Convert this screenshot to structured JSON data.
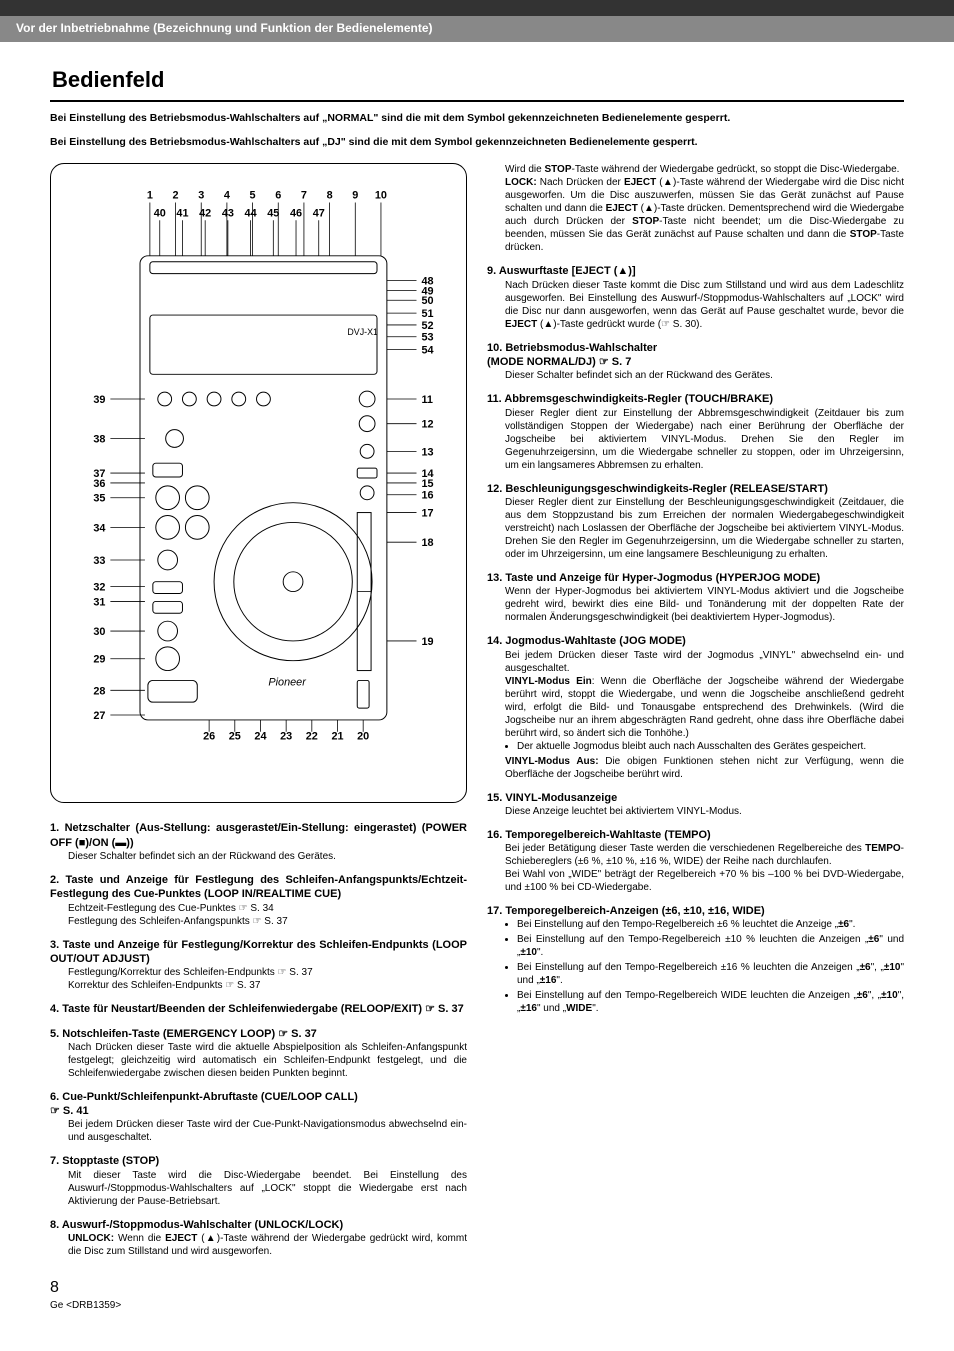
{
  "header": {
    "breadcrumb": "Vor der Inbetriebnahme (Bezeichnung und Funktion der Bedienelemente)"
  },
  "title": "Bedienfeld",
  "intro_line1": "Bei Einstellung des Betriebsmodus-Wahlschalters auf „NORMAL\" sind die mit dem Symbol      gekennzeichneten Bedienelemente gesperrt.",
  "intro_line2": "Bei Einstellung des Betriebsmodus-Wahlschalters auf „DJ\" sind die mit dem Symbol      gekennzeichneten Bedienelemente gesperrt.",
  "diagram": {
    "top_numbers": [
      "1",
      "2",
      "3",
      "4",
      "5",
      "6",
      "7",
      "8",
      "9",
      "10"
    ],
    "top_inner": [
      "40",
      "41",
      "42",
      "43",
      "44",
      "45",
      "46",
      "47"
    ],
    "right_numbers": [
      "48",
      "49",
      "50",
      "51",
      "52",
      "53",
      "54",
      "11",
      "12",
      "13",
      "14",
      "15",
      "16",
      "17",
      "18",
      "19"
    ],
    "left_numbers": [
      "39",
      "38",
      "37",
      "36",
      "35",
      "34",
      "33",
      "32",
      "31",
      "30",
      "29",
      "28",
      "27"
    ],
    "bottom_numbers": [
      "26",
      "25",
      "24",
      "23",
      "22",
      "21",
      "20"
    ],
    "brand": "Pioneer",
    "model": "DVJ-X1"
  },
  "items_left": [
    {
      "n": "1.",
      "title": "Netzschalter (Aus-Stellung: ausgerastet/Ein-Stellung: eingerastet) (POWER OFF (■)/ON (▬))",
      "body": "Dieser Schalter befindet sich an der Rückwand des Gerätes."
    },
    {
      "n": "2.",
      "title": "Taste und Anzeige für Festlegung des Schleifen-Anfangspunkts/Echtzeit-Festlegung des Cue-Punktes (LOOP IN/REALTIME CUE) ",
      "body": "Echtzeit-Festlegung des Cue-Punktes ☞ S. 34\nFestlegung des Schleifen-Anfangspunkts ☞ S. 37"
    },
    {
      "n": "3.",
      "title": "Taste und Anzeige für Festlegung/Korrektur des Schleifen-Endpunkts (LOOP OUT/OUT ADJUST) ",
      "body": "Festlegung/Korrektur des Schleifen-Endpunkts ☞ S. 37\nKorrektur des Schleifen-Endpunkts ☞ S. 37"
    },
    {
      "n": "4.",
      "title": "Taste für Neustart/Beenden der Schleifenwiedergabe (RELOOP/EXIT)        ☞ S. 37",
      "body": ""
    },
    {
      "n": "5.",
      "title": "Notschleifen-Taste (EMERGENCY LOOP)        ☞ S. 37",
      "body": "Nach Drücken dieser Taste wird die aktuelle Abspielposition als Schleifen-Anfangspunkt festgelegt; gleichzeitig wird automatisch ein Schleifen-Endpunkt festgelegt, und die Schleifenwiedergabe zwischen diesen beiden Punkten beginnt."
    },
    {
      "n": "6.",
      "title": "Cue-Punkt/Schleifenpunkt-Abruftaste (CUE/LOOP CALL)\n       ☞ S. 41",
      "body": "Bei jedem Drücken dieser Taste wird der Cue-Punkt-Navigationsmodus abwechselnd ein- und ausgeschaltet."
    },
    {
      "n": "7.",
      "title": "Stopptaste (STOP)",
      "body": "Mit dieser Taste wird die Disc-Wiedergabe beendet. Bei Einstellung des Auswurf-/Stoppmodus-Wahlschalters auf „LOCK\" stoppt die Wiedergabe erst nach Aktivierung der Pause-Betriebsart."
    },
    {
      "n": "8.",
      "title": "Auswurf-/Stoppmodus-Wahlschalter (UNLOCK/LOCK)",
      "body": "<b>UNLOCK:</b> Wenn die <b>EJECT</b> (▲)-Taste während der Wiedergabe gedrückt wird, kommt die Disc zum Stillstand und wird ausgeworfen."
    }
  ],
  "items_right_pre": "Wird die <b>STOP</b>-Taste während der Wiedergabe gedrückt, so stoppt die Disc-Wiedergabe.\n<b>LOCK:</b> Nach Drücken der <b>EJECT</b> (▲)-Taste während der Wiedergabe wird die Disc nicht ausgeworfen. Um die Disc auszuwerfen, müssen Sie das Gerät zunächst auf Pause schalten und dann die <b>EJECT</b> (▲)-Taste drücken. Dementsprechend wird die Wiedergabe auch durch Drücken der <b>STOP</b>-Taste nicht beendet; um die Disc-Wiedergabe zu beenden, müssen Sie das Gerät zunächst auf Pause schalten und dann die <b>STOP</b>-Taste drücken.",
  "items_right": [
    {
      "n": "9.",
      "title": "Auswurftaste [EJECT (▲)]",
      "body": "Nach Drücken dieser Taste kommt die Disc zum Stillstand und wird aus dem Ladeschlitz ausgeworfen. Bei Einstellung des Auswurf-/Stoppmodus-Wahlschalters auf „LOCK\" wird die Disc nur dann ausgeworfen, wenn das Gerät auf Pause geschaltet wurde, bevor die <b>EJECT</b> (▲)-Taste gedrückt wurde (☞ S. 30)."
    },
    {
      "n": "10.",
      "title": "Betriebsmodus-Wahlschalter\n(MODE NORMAL/DJ)     ☞ S. 7",
      "body": "Dieser Schalter befindet sich an der Rückwand des Gerätes."
    },
    {
      "n": "11.",
      "title": "Abbremsgeschwindigkeits-Regler (TOUCH/BRAKE) ",
      "body": "Dieser Regler dient zur Einstellung der Abbremsgeschwindigkeit (Zeitdauer bis zum vollständigen Stoppen der Wiedergabe) nach einer Berührung der Oberfläche der Jogscheibe bei aktiviertem VINYL-Modus. Drehen Sie den Regler im Gegenuhrzeigersinn, um die Wiedergabe schneller zu stoppen, oder im Uhrzeigersinn, um ein langsameres Abbremsen zu erhalten."
    },
    {
      "n": "12.",
      "title": "Beschleunigungsgeschwindigkeits-Regler (RELEASE/START) ",
      "body": "Dieser Regler dient zur Einstellung der Beschleunigungsgeschwindigkeit (Zeitdauer, die aus dem Stoppzustand bis zum Erreichen der normalen Wiedergabegeschwindigkeit verstreicht) nach Loslassen der Oberfläche der Jogscheibe bei aktiviertem VINYL-Modus. Drehen Sie den Regler im Gegenuhrzeigersinn, um die Wiedergabe schneller zu starten, oder im Uhrzeigersinn, um eine langsamere Beschleunigung zu erhalten."
    },
    {
      "n": "13.",
      "title": "Taste und Anzeige für Hyper-Jogmodus (HYPERJOG MODE) ",
      "body": "Wenn der Hyper-Jogmodus bei aktiviertem VINYL-Modus aktiviert und die Jogscheibe gedreht wird, bewirkt dies eine Bild- und Tonänderung mit der doppelten Rate der normalen Änderungsgeschwindigkeit (bei deaktiviertem Hyper-Jogmodus)."
    },
    {
      "n": "14.",
      "title": "Jogmodus-Wahltaste (JOG MODE) ",
      "body": "Bei jedem Drücken dieser Taste wird der Jogmodus „VINYL\" abwechselnd ein- und ausgeschaltet.\n<b>VINYL-Modus Ein</b>: Wenn die Oberfläche der Jogscheibe während der Wiedergabe berührt wird, stoppt die Wiedergabe, und wenn die Jogscheibe anschließend gedreht wird, erfolgt die Bild- und Tonausgabe entsprechend des Drehwinkels. (Wird die Jogscheibe nur an ihrem abgeschrägten Rand gedreht, ohne dass ihre Oberfläche dabei berührt wird, so ändert sich die Tonhöhe.)",
      "bullets": [
        "Der aktuelle Jogmodus bleibt auch nach Ausschalten des Gerätes gespeichert."
      ],
      "body2": "<b>VINYL-Modus Aus:</b> Die obigen Funktionen stehen nicht zur Verfügung, wenn die Oberfläche der Jogscheibe berührt wird."
    },
    {
      "n": "15.",
      "title": "VINYL-Modusanzeige ",
      "body": "Diese Anzeige leuchtet bei aktiviertem VINYL-Modus."
    },
    {
      "n": "16.",
      "title": "Temporegelbereich-Wahltaste (TEMPO) ",
      "body": "Bei jeder Betätigung dieser Taste werden die verschiedenen Regelbereiche des <b>TEMPO</b>-Schiebereglers (±6 %, ±10 %, ±16 %, WIDE) der Reihe nach durchlaufen.\nBei Wahl von „WIDE\" beträgt der Regelbereich +70 % bis –100 % bei DVD-Wiedergabe, und ±100 % bei CD-Wiedergabe."
    },
    {
      "n": "17.",
      "title": "Temporegelbereich-Anzeigen (±6, ±10, ±16, WIDE) ",
      "bullets": [
        "Bei Einstellung auf den Tempo-Regelbereich ±6 % leuchtet die Anzeige „<b>±6</b>\".",
        "Bei Einstellung auf den Tempo-Regelbereich ±10 % leuchten die Anzeigen „<b>±6</b>\" und „<b>±10</b>\".",
        "Bei Einstellung auf den Tempo-Regelbereich ±16 % leuchten die Anzeigen „<b>±6</b>\", „<b>±10</b>\" und „<b>±16</b>\".",
        "Bei Einstellung auf den Tempo-Regelbereich WIDE leuchten die Anzeigen „<b>±6</b>\", „<b>±10</b>\", „<b>±16</b>\" und „<b>WIDE</b>\"."
      ]
    }
  ],
  "footer": {
    "page": "8",
    "ref": "Ge <DRB1359>"
  }
}
